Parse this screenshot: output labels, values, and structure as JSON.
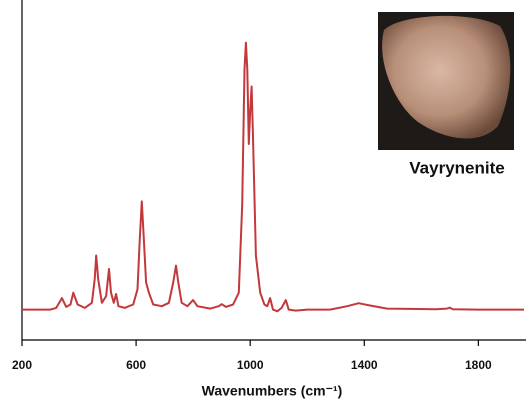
{
  "chart_data": {
    "type": "line",
    "x_label": "Wavenumbers (cm⁻¹)",
    "annotation": "Vayrynenite",
    "xlim": [
      200,
      1960
    ],
    "xticks": [
      200,
      600,
      1000,
      1400,
      1800
    ],
    "ylim": [
      0,
      100
    ],
    "series": [
      {
        "color": "#c3383b",
        "x": [
          200,
          300,
          320,
          340,
          355,
          370,
          380,
          395,
          420,
          445,
          455,
          460,
          467,
          480,
          495,
          505,
          512,
          522,
          530,
          538,
          560,
          590,
          605,
          613,
          620,
          627,
          635,
          645,
          660,
          690,
          715,
          730,
          740,
          748,
          760,
          780,
          800,
          815,
          860,
          890,
          900,
          915,
          940,
          960,
          972,
          980,
          985,
          990,
          995,
          1000,
          1005,
          1010,
          1020,
          1035,
          1050,
          1060,
          1070,
          1080,
          1095,
          1110,
          1125,
          1135,
          1160,
          1200,
          1280,
          1340,
          1380,
          1420,
          1480,
          1560,
          1650,
          1690,
          1700,
          1710,
          1800,
          1960
        ],
        "values": [
          9,
          9,
          9.5,
          12.4,
          9.8,
          10.5,
          14,
          10.5,
          9.5,
          11,
          18,
          25,
          18,
          11,
          13,
          21,
          14,
          11,
          13.6,
          10,
          9.5,
          10.5,
          15,
          30,
          41,
          30,
          17,
          14,
          10.5,
          10,
          11,
          17,
          22,
          17,
          11,
          10,
          11.8,
          10,
          9.3,
          10,
          10.6,
          9.8,
          10.5,
          14,
          40,
          80,
          88,
          80,
          58,
          68,
          75,
          60,
          25,
          14,
          10.5,
          10,
          12.4,
          9,
          8.5,
          9.5,
          11.8,
          9,
          8.7,
          9,
          9,
          10,
          10.9,
          10.2,
          9.3,
          9.2,
          9.1,
          9.3,
          9.6,
          9.1,
          9,
          9
        ]
      }
    ]
  }
}
